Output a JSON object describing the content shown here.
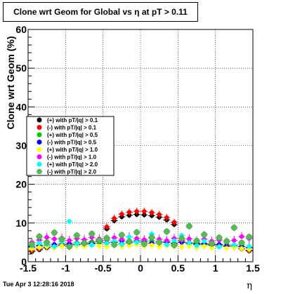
{
  "chart_data": {
    "type": "scatter",
    "title": "Clone wrt Geom for Global vs η at pT > 0.11",
    "xlabel": "η",
    "ylabel": "Clone wrt Geom (%)",
    "xlim": [
      -1.5,
      1.5
    ],
    "ylim": [
      0,
      60
    ],
    "x_ticks": [
      "-1.5",
      "-1",
      "-0.5",
      "0",
      "0.5",
      "1",
      "1.5"
    ],
    "y_ticks": [
      "0",
      "10",
      "20",
      "30",
      "40",
      "50",
      "60"
    ],
    "grid": true,
    "legend_position": "left-middle",
    "series": [
      {
        "name": "(+) with pT/|q| > 0.1",
        "color": "#000000",
        "marker": "circle",
        "x": [
          -1.45,
          -1.35,
          -1.25,
          -1.15,
          -1.05,
          -0.95,
          -0.85,
          -0.75,
          -0.65,
          -0.55,
          -0.45,
          -0.35,
          -0.25,
          -0.15,
          -0.05,
          0.05,
          0.15,
          0.25,
          0.35,
          0.45,
          0.55,
          0.65,
          0.75,
          0.85,
          0.95,
          1.05,
          1.15,
          1.25,
          1.35,
          1.45
        ],
        "y": [
          2.6,
          3.1,
          3.6,
          3.9,
          4.1,
          4.3,
          4.2,
          4.6,
          4.8,
          5.3,
          8.5,
          10.6,
          11.6,
          12.0,
          12.2,
          12.1,
          11.9,
          11.5,
          10.8,
          9.6,
          5.0,
          4.8,
          4.6,
          4.4,
          4.3,
          4.2,
          4.0,
          3.8,
          3.3,
          2.8
        ]
      },
      {
        "name": "(-) with pT/|q| > 0.1",
        "color": "#ff0000",
        "marker": "circle",
        "x": [
          -1.45,
          -1.35,
          -1.25,
          -1.15,
          -1.05,
          -0.95,
          -0.85,
          -0.75,
          -0.65,
          -0.55,
          -0.45,
          -0.35,
          -0.25,
          -0.15,
          -0.05,
          0.05,
          0.15,
          0.25,
          0.35,
          0.45,
          0.55,
          0.65,
          0.75,
          0.85,
          0.95,
          1.05,
          1.15,
          1.25,
          1.35,
          1.45
        ],
        "y": [
          2.9,
          3.4,
          3.8,
          4.0,
          4.3,
          4.4,
          4.5,
          4.8,
          5.1,
          5.6,
          9.0,
          11.2,
          12.3,
          12.8,
          13.0,
          13.0,
          12.7,
          12.2,
          11.4,
          10.2,
          5.3,
          5.0,
          4.8,
          4.6,
          4.5,
          4.3,
          4.1,
          3.9,
          3.5,
          3.0
        ]
      },
      {
        "name": "(+) with pT/|q| > 0.5",
        "color": "#00cc00",
        "marker": "circle",
        "x": [
          -1.45,
          -1.35,
          -1.25,
          -1.15,
          -1.05,
          -0.95,
          -0.85,
          -0.75,
          -0.65,
          -0.55,
          -0.45,
          -0.35,
          -0.25,
          -0.15,
          -0.05,
          0.05,
          0.15,
          0.25,
          0.35,
          0.45,
          0.55,
          0.65,
          0.75,
          0.85,
          0.95,
          1.05,
          1.15,
          1.25,
          1.35,
          1.45
        ],
        "y": [
          3.5,
          4.0,
          4.4,
          4.1,
          4.6,
          4.3,
          4.9,
          4.5,
          5.2,
          4.8,
          5.0,
          5.3,
          4.7,
          5.1,
          5.5,
          5.0,
          5.4,
          4.9,
          5.2,
          4.8,
          5.1,
          4.6,
          4.9,
          4.4,
          4.7,
          4.2,
          4.5,
          4.0,
          4.3,
          3.7
        ]
      },
      {
        "name": "(-) with pT/|q| > 0.5",
        "color": "#0000ff",
        "marker": "circle",
        "x": [
          -1.45,
          -1.35,
          -1.25,
          -1.15,
          -1.05,
          -0.95,
          -0.85,
          -0.75,
          -0.65,
          -0.55,
          -0.45,
          -0.35,
          -0.25,
          -0.15,
          -0.05,
          0.05,
          0.15,
          0.25,
          0.35,
          0.45,
          0.55,
          0.65,
          0.75,
          0.85,
          0.95,
          1.05,
          1.15,
          1.25,
          1.35,
          1.45
        ],
        "y": [
          3.8,
          4.2,
          4.0,
          4.5,
          4.3,
          4.7,
          4.4,
          4.9,
          4.6,
          5.2,
          4.8,
          5.0,
          5.4,
          4.9,
          5.1,
          5.3,
          4.8,
          5.2,
          5.0,
          4.7,
          5.0,
          4.8,
          4.5,
          4.7,
          4.3,
          4.5,
          4.1,
          4.3,
          3.9,
          3.6
        ]
      },
      {
        "name": "(+) with pT/|q| > 1.0",
        "color": "#ffff00",
        "marker": "circle",
        "x": [
          -1.45,
          -1.35,
          -1.25,
          -1.15,
          -1.05,
          -0.95,
          -0.85,
          -0.75,
          -0.65,
          -0.55,
          -0.45,
          -0.35,
          -0.25,
          -0.15,
          -0.05,
          0.05,
          0.15,
          0.25,
          0.35,
          0.45,
          0.55,
          0.65,
          0.75,
          0.85,
          0.95,
          1.05,
          1.15,
          1.25,
          1.35,
          1.45
        ],
        "y": [
          3.4,
          3.7,
          3.9,
          3.6,
          4.1,
          3.8,
          4.2,
          4.0,
          4.4,
          4.1,
          3.9,
          4.3,
          4.0,
          4.2,
          4.5,
          4.1,
          4.3,
          3.9,
          4.2,
          4.0,
          3.8,
          4.1,
          3.7,
          4.0,
          3.6,
          3.9,
          3.5,
          3.8,
          3.4,
          3.2
        ]
      },
      {
        "name": "(-) with pT/|q| > 1.0",
        "color": "#ff00ff",
        "marker": "circle",
        "x": [
          -1.45,
          -1.35,
          -1.25,
          -1.15,
          -1.05,
          -0.95,
          -0.85,
          -0.75,
          -0.65,
          -0.55,
          -0.45,
          -0.35,
          -0.25,
          -0.15,
          -0.05,
          0.05,
          0.15,
          0.25,
          0.35,
          0.45,
          0.55,
          0.65,
          0.75,
          0.85,
          0.95,
          1.05,
          1.15,
          1.25,
          1.35,
          1.45
        ],
        "y": [
          5.0,
          5.6,
          6.3,
          5.9,
          6.1,
          5.5,
          6.0,
          5.7,
          6.3,
          5.9,
          5.6,
          6.2,
          5.8,
          6.4,
          6.0,
          5.7,
          6.1,
          5.8,
          5.5,
          6.0,
          5.6,
          5.9,
          5.4,
          5.8,
          5.3,
          5.6,
          5.1,
          5.5,
          6.5,
          6.0
        ]
      },
      {
        "name": "(+) with pT/|q| > 2.0",
        "color": "#00ffff",
        "marker": "circle",
        "x": [
          -1.45,
          -1.35,
          -1.25,
          -1.15,
          -1.05,
          -0.95,
          -0.85,
          -0.75,
          -0.65,
          -0.55,
          -0.45,
          -0.35,
          -0.25,
          -0.15,
          -0.05,
          0.05,
          0.15,
          0.25,
          0.35,
          0.45,
          0.55,
          0.65,
          0.75,
          0.85,
          0.95,
          1.05,
          1.15,
          1.25,
          1.35,
          1.45
        ],
        "y": [
          4.2,
          4.8,
          4.5,
          3.9,
          5.2,
          10.4,
          4.6,
          5.0,
          4.3,
          5.5,
          4.8,
          5.3,
          4.5,
          6.4,
          5.0,
          4.6,
          7.2,
          5.1,
          4.4,
          5.4,
          6.8,
          4.9,
          4.2,
          5.3,
          4.7,
          3.8,
          5.1,
          4.4,
          4.9,
          4.0
        ]
      },
      {
        "name": "(-) with pT/|q| > 2.0",
        "color": "#55bb55",
        "marker": "circle",
        "x": [
          -1.45,
          -1.35,
          -1.25,
          -1.15,
          -1.05,
          -0.95,
          -0.85,
          -0.75,
          -0.65,
          -0.55,
          -0.45,
          -0.35,
          -0.25,
          -0.15,
          -0.05,
          0.05,
          0.15,
          0.25,
          0.35,
          0.45,
          0.55,
          0.65,
          0.75,
          0.85,
          0.95,
          1.05,
          1.15,
          1.25,
          1.35,
          1.45
        ],
        "y": [
          4.5,
          6.5,
          5.0,
          7.5,
          5.8,
          3.9,
          6.8,
          4.8,
          7.2,
          5.5,
          6.1,
          4.4,
          6.9,
          5.2,
          7.6,
          4.6,
          6.3,
          5.0,
          7.8,
          4.3,
          6.0,
          9.2,
          5.4,
          7.0,
          4.7,
          6.2,
          5.3,
          8.8,
          4.9,
          6.4
        ]
      }
    ]
  },
  "footer": {
    "date": "Tue Apr  3 12:28:16 2018"
  }
}
